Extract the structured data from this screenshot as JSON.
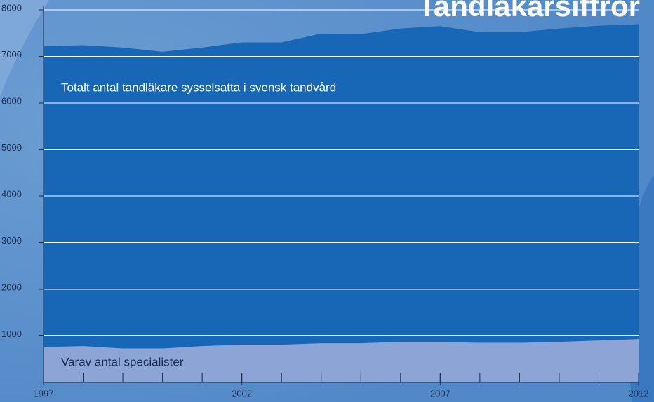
{
  "chart_data": {
    "type": "area",
    "title": "Tandläkarsiffror",
    "x": [
      1997,
      1998,
      1999,
      2000,
      2001,
      2002,
      2003,
      2004,
      2005,
      2006,
      2007,
      2008,
      2009,
      2010,
      2011,
      2012
    ],
    "series": [
      {
        "name": "Totalt antal tandläkare sysselsatta i svensk tandvård",
        "color": "#1767b6",
        "values": [
          7220,
          7240,
          7190,
          7100,
          7190,
          7300,
          7300,
          7490,
          7480,
          7600,
          7650,
          7520,
          7520,
          7600,
          7660,
          7690
        ]
      },
      {
        "name": "Varav antal specialister",
        "color": "#8ca4d6",
        "values": [
          760,
          780,
          730,
          730,
          780,
          810,
          810,
          840,
          840,
          870,
          870,
          850,
          850,
          870,
          900,
          930
        ]
      }
    ],
    "xlim": [
      1997,
      2012
    ],
    "xticks": [
      1997,
      2002,
      2007,
      2012
    ],
    "ylim": [
      0,
      8000
    ],
    "yticks": [
      1000,
      2000,
      3000,
      4000,
      5000,
      6000,
      7000,
      8000
    ],
    "grid": true
  }
}
